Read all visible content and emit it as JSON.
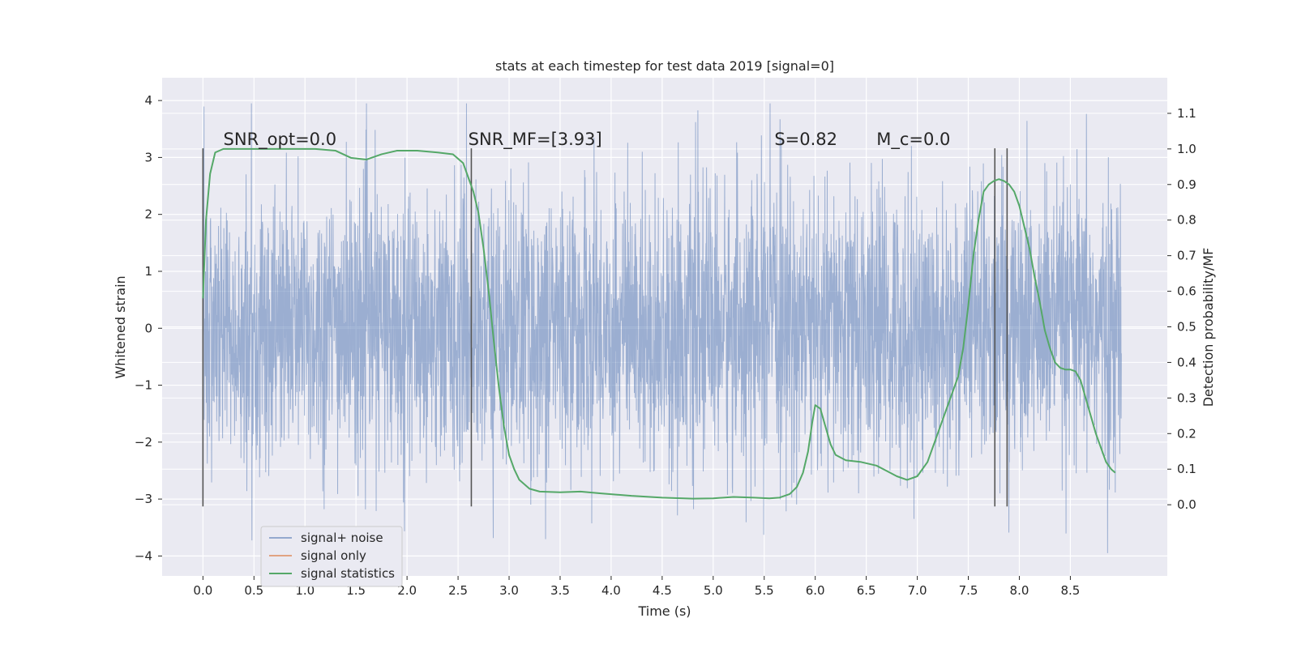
{
  "chart_data": {
    "type": "line",
    "title": "stats at each timestep for test data 2019 [signal=0]",
    "xlabel": "Time (s)",
    "ylabel": "Whitened strain",
    "ylabel_right": "Detection probability/MF",
    "xlim": [
      -0.4,
      9.45
    ],
    "ylim": [
      -4.35,
      4.4
    ],
    "ylim_right": [
      -0.2,
      1.2
    ],
    "x_ticks": [
      0.0,
      0.5,
      1.0,
      1.5,
      2.0,
      2.5,
      3.0,
      3.5,
      4.0,
      4.5,
      5.0,
      5.5,
      6.0,
      6.5,
      7.0,
      7.5,
      8.0,
      8.5
    ],
    "x_tick_labels": [
      "0.0",
      "0.5",
      "1.0",
      "1.5",
      "2.0",
      "2.5",
      "3.0",
      "3.5",
      "4.0",
      "4.5",
      "5.0",
      "5.5",
      "6.0",
      "6.5",
      "7.0",
      "7.5",
      "8.0",
      "8.5"
    ],
    "y_ticks": [
      4,
      3,
      2,
      1,
      0,
      -1,
      -2,
      -3,
      -4
    ],
    "y_tick_labels": [
      "4",
      "3",
      "2",
      "1",
      "0",
      "−1",
      "−2",
      "−3",
      "−4"
    ],
    "y_ticks_right": [
      1.1,
      1.0,
      0.9,
      0.8,
      0.7,
      0.6,
      0.5,
      0.4,
      0.3,
      0.2,
      0.1,
      0.0
    ],
    "y_tick_labels_right": [
      "1.1",
      "1.0",
      "0.9",
      "0.8",
      "0.7",
      "0.6",
      "0.5",
      "0.4",
      "0.3",
      "0.2",
      "0.1",
      "0.0"
    ],
    "grid": true,
    "legend_position": "bottom-left",
    "noise_range": [
      0.0,
      9.0
    ],
    "noise_amplitude": 1.2,
    "series": [
      {
        "name": "signal+ noise",
        "color": "#4c72b0",
        "kind": "noise"
      },
      {
        "name": "signal only",
        "color": "#dd8452",
        "kind": "line",
        "x": [],
        "y": []
      },
      {
        "name": "signal statistics",
        "color": "#55a868",
        "kind": "line",
        "axis": "right",
        "x": [
          0.0,
          0.03,
          0.07,
          0.12,
          0.2,
          0.3,
          0.5,
          0.8,
          1.1,
          1.3,
          1.45,
          1.6,
          1.75,
          1.9,
          2.1,
          2.3,
          2.45,
          2.55,
          2.6,
          2.65,
          2.7,
          2.75,
          2.8,
          2.85,
          2.9,
          2.95,
          3.0,
          3.05,
          3.1,
          3.2,
          3.3,
          3.5,
          3.7,
          3.9,
          4.2,
          4.5,
          4.8,
          5.0,
          5.2,
          5.4,
          5.55,
          5.65,
          5.75,
          5.82,
          5.88,
          5.93,
          5.97,
          6.0,
          6.05,
          6.1,
          6.15,
          6.2,
          6.3,
          6.45,
          6.6,
          6.7,
          6.8,
          6.9,
          7.0,
          7.1,
          7.2,
          7.3,
          7.4,
          7.45,
          7.5,
          7.55,
          7.6,
          7.65,
          7.7,
          7.75,
          7.8,
          7.85,
          7.9,
          7.95,
          8.0,
          8.05,
          8.1,
          8.15,
          8.2,
          8.25,
          8.3,
          8.35,
          8.4,
          8.45,
          8.5,
          8.55,
          8.6,
          8.65,
          8.7,
          8.75,
          8.8,
          8.85,
          8.9,
          8.94
        ],
        "y": [
          0.58,
          0.8,
          0.93,
          0.99,
          1.0,
          1.0,
          1.0,
          1.0,
          1.0,
          0.995,
          0.975,
          0.97,
          0.985,
          0.995,
          0.995,
          0.99,
          0.985,
          0.96,
          0.92,
          0.88,
          0.82,
          0.72,
          0.6,
          0.46,
          0.33,
          0.22,
          0.14,
          0.1,
          0.07,
          0.045,
          0.037,
          0.035,
          0.037,
          0.032,
          0.025,
          0.02,
          0.017,
          0.018,
          0.022,
          0.02,
          0.018,
          0.02,
          0.03,
          0.05,
          0.09,
          0.15,
          0.23,
          0.28,
          0.27,
          0.22,
          0.17,
          0.14,
          0.125,
          0.12,
          0.11,
          0.095,
          0.08,
          0.07,
          0.08,
          0.12,
          0.2,
          0.28,
          0.36,
          0.44,
          0.56,
          0.7,
          0.8,
          0.88,
          0.9,
          0.91,
          0.915,
          0.91,
          0.9,
          0.88,
          0.84,
          0.78,
          0.72,
          0.64,
          0.57,
          0.49,
          0.44,
          0.4,
          0.385,
          0.38,
          0.38,
          0.375,
          0.35,
          0.3,
          0.25,
          0.2,
          0.16,
          0.12,
          0.1,
          0.09
        ]
      }
    ],
    "vertical_lines": [
      {
        "x": 0.0,
        "y_range": [
          -3.13,
          3.16
        ]
      },
      {
        "x": 2.63,
        "y_range": [
          -3.13,
          3.16
        ]
      },
      {
        "x": 7.76,
        "y_range": [
          -3.13,
          3.16
        ]
      },
      {
        "x": 7.88,
        "y_range": [
          -3.13,
          3.16
        ]
      }
    ],
    "annotations": [
      {
        "text": "SNR_opt=0.0",
        "x": 0.2,
        "y": 3.22
      },
      {
        "text": "SNR_MF=[3.93]",
        "x": 2.6,
        "y": 3.22
      },
      {
        "text": "S=0.82",
        "x": 5.6,
        "y": 3.22
      },
      {
        "text": "M_c=0.0",
        "x": 6.6,
        "y": 3.22
      }
    ]
  },
  "colors": {
    "plot_background": "#eaeaf2",
    "grid": "#ffffff",
    "noise": "#4c72b0",
    "signal_only": "#dd8452",
    "statistics": "#55a868",
    "vline": "#555555"
  }
}
